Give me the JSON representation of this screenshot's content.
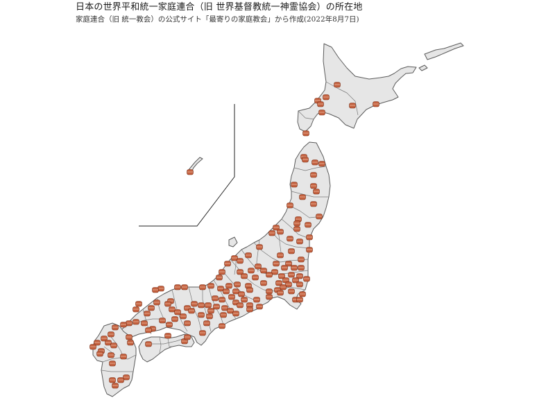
{
  "title": "日本の世界平和統一家庭連合（旧 世界基督教統一神霊協会）の所在地",
  "subtitle": "家庭連合（旧 統一教会）の公式サイト「最寄りの家庭教会」から作成(2022年8月7日)",
  "colors": {
    "land": "#e6e6e6",
    "border": "#5a5a5a",
    "marker_fill": "#c4613f",
    "marker_stroke": "#7a2f16",
    "marker_band": "#e7b49c"
  },
  "marker_icon": "church-location-icon",
  "region_names": [
    "hokkaido",
    "honshu",
    "shikoku",
    "kyushu",
    "okinawa"
  ]
}
